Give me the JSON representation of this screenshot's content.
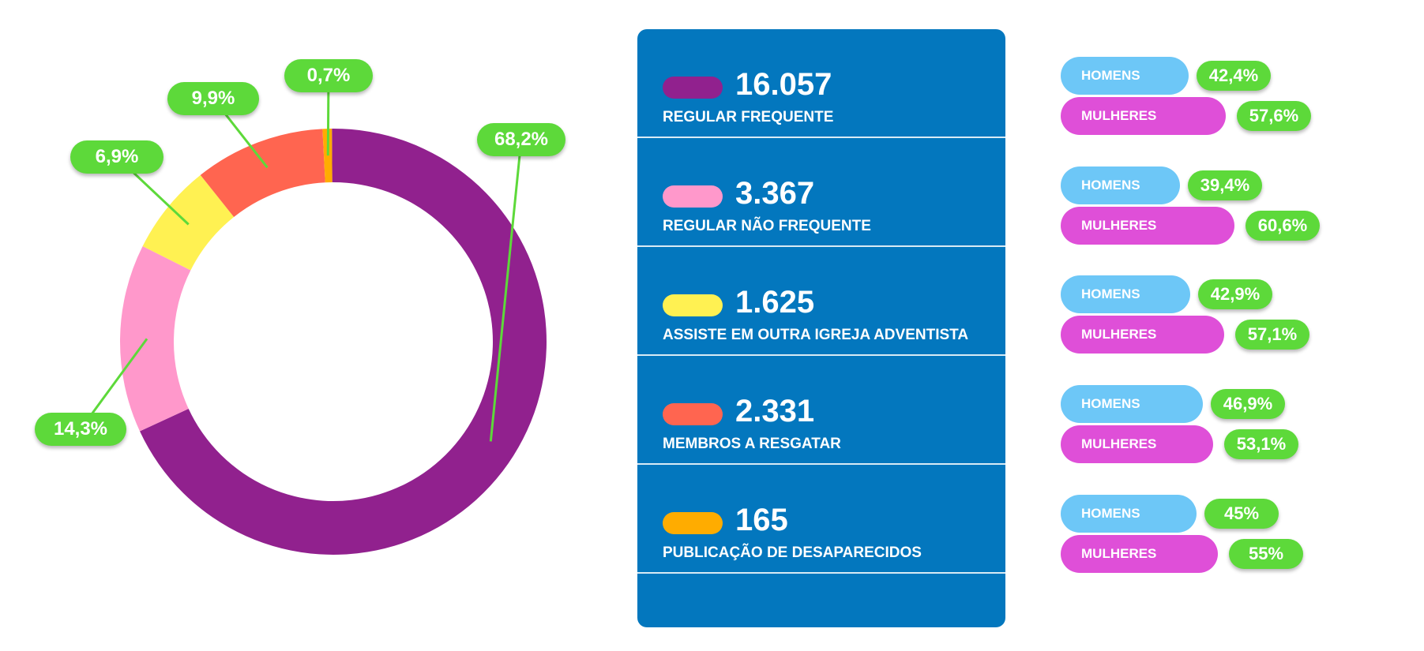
{
  "chart_data": {
    "type": "pie",
    "donut": true,
    "slices": [
      {
        "label": "REGULAR FREQUENTE",
        "value": 16057,
        "percent_label": "68,2%",
        "color": "#91218E"
      },
      {
        "label": "REGULAR NÃO FREQUENTE",
        "value": 3367,
        "percent_label": "14,3%",
        "color": "#FF98CB"
      },
      {
        "label": "ASSISTE EM OUTRA IGREJA ADVENTISTA",
        "value": 1625,
        "percent_label": "6,9%",
        "color": "#FFF152"
      },
      {
        "label": "MEMBROS A RESGATAR",
        "value": 2331,
        "percent_label": "9,9%",
        "color": "#FF6550"
      },
      {
        "label": "PUBLICAÇÃO DE DESAPARECIDOS",
        "value": 165,
        "percent_label": "0,7%",
        "color": "#FFAC00"
      }
    ],
    "legend": [
      {
        "value": "16.057",
        "label": "REGULAR FREQUENTE",
        "color": "#91218E"
      },
      {
        "value": "3.367",
        "label": "REGULAR NÃO FREQUENTE",
        "color": "#FF98CB"
      },
      {
        "value": "1.625",
        "label": "ASSISTE EM OUTRA IGREJA ADVENTISTA",
        "color": "#FFF152"
      },
      {
        "value": "2.331",
        "label": "MEMBROS A RESGATAR",
        "color": "#FF6550"
      },
      {
        "value": "165",
        "label": "PUBLICAÇÃO DE DESAPARECIDOS",
        "color": "#FFAC00"
      }
    ],
    "gender_breakdown": [
      {
        "men_label": "HOMENS",
        "men_value": 42.4,
        "men_pct": "42,4%",
        "women_label": "MULHERES",
        "women_value": 57.6,
        "women_pct": "57,6%"
      },
      {
        "men_label": "HOMENS",
        "men_value": 39.4,
        "men_pct": "39,4%",
        "women_label": "MULHERES",
        "women_value": 60.6,
        "women_pct": "60,6%"
      },
      {
        "men_label": "HOMENS",
        "men_value": 42.9,
        "men_pct": "42,9%",
        "women_label": "MULHERES",
        "women_value": 57.1,
        "women_pct": "57,1%"
      },
      {
        "men_label": "HOMENS",
        "men_value": 46.9,
        "men_pct": "46,9%",
        "women_label": "MULHERES",
        "women_value": 53.1,
        "women_pct": "53,1%"
      },
      {
        "men_label": "HOMENS",
        "men_value": 45,
        "men_pct": "45%",
        "women_label": "MULHERES",
        "women_value": 55,
        "women_pct": "55%"
      }
    ]
  },
  "colors": {
    "panel": "#0377BE",
    "label_badge": "#5DD93A",
    "men_bar": "#6DC7F7",
    "women_bar": "#DF4FD8"
  }
}
